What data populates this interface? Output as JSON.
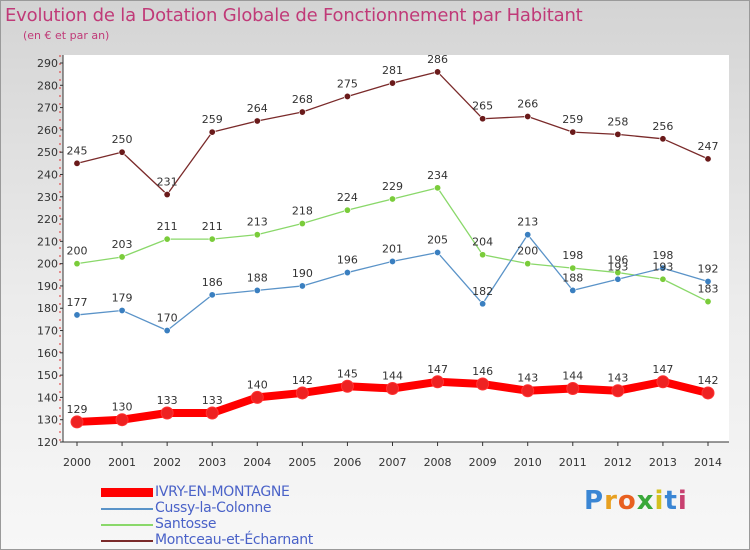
{
  "title": "Evolution de la Dotation Globale de Fonctionnement par Habitant",
  "subtitle": "(en € et par an)",
  "logo": "Proxiti",
  "chart_data": {
    "type": "line",
    "x": [
      "2000",
      "2001",
      "2002",
      "2003",
      "2004",
      "2005",
      "2006",
      "2007",
      "2008",
      "2009",
      "2010",
      "2011",
      "2012",
      "2013",
      "2014"
    ],
    "ylim": [
      120,
      290
    ],
    "yticks": [
      120,
      130,
      140,
      150,
      160,
      170,
      180,
      190,
      200,
      210,
      220,
      230,
      240,
      250,
      260,
      270,
      280,
      290
    ],
    "grid": false,
    "legend_position": "bottom-left",
    "series": [
      {
        "name": "IVRY-EN-MONTAGNE",
        "color": "#ff0000",
        "marker_color": "#ee2222",
        "values": [
          129,
          130,
          133,
          133,
          140,
          142,
          145,
          144,
          147,
          146,
          143,
          144,
          143,
          147,
          142
        ]
      },
      {
        "name": "Cussy-la-Colonne",
        "color": "#5a93c8",
        "marker_color": "#3a7fc0",
        "values": [
          177,
          179,
          170,
          186,
          188,
          190,
          196,
          201,
          205,
          182,
          213,
          188,
          193,
          198,
          192
        ]
      },
      {
        "name": "Santosse",
        "color": "#8ad86a",
        "marker_color": "#7acc3a",
        "values": [
          200,
          203,
          211,
          211,
          213,
          218,
          224,
          229,
          234,
          204,
          200,
          198,
          196,
          193,
          183
        ]
      },
      {
        "name": "Montceau-et-Écharnant",
        "color": "#7a2a2a",
        "marker_color": "#6a1a1a",
        "values": [
          245,
          250,
          231,
          259,
          264,
          268,
          275,
          281,
          286,
          265,
          266,
          259,
          258,
          256,
          247
        ]
      }
    ],
    "data_labels": [
      [
        "129",
        "130",
        "133",
        "133",
        "140",
        "142",
        "145",
        "144",
        "147",
        "146",
        "143",
        "144",
        "143",
        "147",
        "142"
      ],
      [
        "177",
        "179",
        "170",
        "186",
        "188",
        "190",
        "196",
        "201",
        "205",
        "182",
        "213",
        "188",
        "193",
        "198",
        "192"
      ],
      [
        "200",
        "203",
        "211",
        "211",
        "213",
        "218",
        "224",
        "229",
        "234",
        "204",
        "200",
        "198",
        "196",
        "193",
        "183"
      ],
      [
        "245",
        "250",
        "231",
        "259",
        "264",
        "268",
        "275",
        "281",
        "286",
        "265",
        "266",
        "259",
        "258",
        "256",
        "247"
      ]
    ]
  }
}
